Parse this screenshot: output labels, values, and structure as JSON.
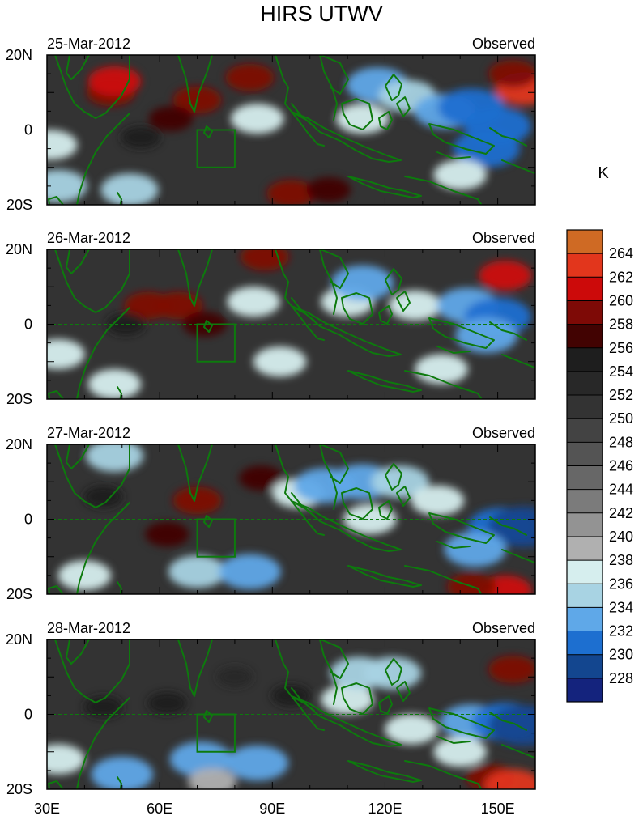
{
  "title": "HIRS UTWV",
  "chart_data": {
    "type": "heatmap",
    "title": "HIRS UTWV",
    "units": "K",
    "xlabel": "",
    "ylabel": "",
    "xlim": [
      30,
      160
    ],
    "ylim": [
      -20,
      20
    ],
    "x_ticks": [
      {
        "value": 30,
        "label": "30E"
      },
      {
        "value": 60,
        "label": "60E"
      },
      {
        "value": 90,
        "label": "90E"
      },
      {
        "value": 120,
        "label": "120E"
      },
      {
        "value": 150,
        "label": "150E"
      }
    ],
    "y_ticks": [
      {
        "value": 20,
        "label": "20N"
      },
      {
        "value": 0,
        "label": "0"
      },
      {
        "value": -20,
        "label": "20S"
      }
    ],
    "colorbar": {
      "levels": [
        264,
        262,
        260,
        258,
        256,
        254,
        252,
        250,
        248,
        246,
        244,
        242,
        240,
        238,
        236,
        234,
        232,
        230,
        228
      ],
      "colors": [
        "#cf6a24",
        "#e2361c",
        "#cc0a0a",
        "#7e0a06",
        "#420302",
        "#1e1e1e",
        "#282828",
        "#333333",
        "#434343",
        "#545454",
        "#676767",
        "#7b7b7b",
        "#939393",
        "#b0b0b0",
        "#d6eeee",
        "#a8d3e3",
        "#5fa8e8",
        "#1d6fd0",
        "#13468f",
        "#14237d"
      ]
    },
    "panels": [
      {
        "date": "25-Mar-2012",
        "tag": "Observed",
        "features": [
          {
            "lon": 47,
            "lat": 10,
            "value": 258
          },
          {
            "lon": 48,
            "lat": 13,
            "value": 260
          },
          {
            "lon": 70,
            "lat": 8,
            "value": 258
          },
          {
            "lon": 63,
            "lat": 3,
            "value": 256
          },
          {
            "lon": 84,
            "lat": 14,
            "value": 258
          },
          {
            "lon": 55,
            "lat": -2,
            "value": 254
          },
          {
            "lon": 95,
            "lat": -17,
            "value": 258
          },
          {
            "lon": 105,
            "lat": -16,
            "value": 256
          },
          {
            "lon": 157,
            "lat": 11,
            "value": 262
          },
          {
            "lon": 154,
            "lat": 15,
            "value": 258
          },
          {
            "lon": 31,
            "lat": -4,
            "value": 236
          },
          {
            "lon": 33,
            "lat": -15,
            "value": 234
          },
          {
            "lon": 52,
            "lat": -16,
            "value": 234
          },
          {
            "lon": 86,
            "lat": 3,
            "value": 236
          },
          {
            "lon": 114,
            "lat": 3,
            "value": 236
          },
          {
            "lon": 118,
            "lat": 12,
            "value": 232
          },
          {
            "lon": 126,
            "lat": 9,
            "value": 234
          },
          {
            "lon": 136,
            "lat": 5,
            "value": 232
          },
          {
            "lon": 143,
            "lat": 6,
            "value": 230
          },
          {
            "lon": 150,
            "lat": 1,
            "value": 230
          },
          {
            "lon": 147,
            "lat": -5,
            "value": 230
          },
          {
            "lon": 140,
            "lat": -12,
            "value": 236
          }
        ]
      },
      {
        "date": "26-Mar-2012",
        "tag": "Observed",
        "features": [
          {
            "lon": 57,
            "lat": 5,
            "value": 258
          },
          {
            "lon": 65,
            "lat": 5,
            "value": 258
          },
          {
            "lon": 72,
            "lat": 0,
            "value": 256
          },
          {
            "lon": 51,
            "lat": 0,
            "value": 254
          },
          {
            "lon": 88,
            "lat": 18,
            "value": 258
          },
          {
            "lon": 152,
            "lat": 13,
            "value": 260
          },
          {
            "lon": 33,
            "lat": -8,
            "value": 236
          },
          {
            "lon": 48,
            "lat": -16,
            "value": 236
          },
          {
            "lon": 92,
            "lat": -10,
            "value": 236
          },
          {
            "lon": 85,
            "lat": 6,
            "value": 236
          },
          {
            "lon": 110,
            "lat": 6,
            "value": 236
          },
          {
            "lon": 114,
            "lat": 11,
            "value": 232
          },
          {
            "lon": 128,
            "lat": 5,
            "value": 236
          },
          {
            "lon": 142,
            "lat": 5,
            "value": 232
          },
          {
            "lon": 150,
            "lat": 2,
            "value": 230
          },
          {
            "lon": 147,
            "lat": -3,
            "value": 232
          },
          {
            "lon": 135,
            "lat": -12,
            "value": 236
          }
        ]
      },
      {
        "date": "27-Mar-2012",
        "tag": "Observed",
        "features": [
          {
            "lon": 62,
            "lat": -4,
            "value": 256
          },
          {
            "lon": 70,
            "lat": 5,
            "value": 258
          },
          {
            "lon": 87,
            "lat": 11,
            "value": 256
          },
          {
            "lon": 45,
            "lat": 6,
            "value": 254
          },
          {
            "lon": 152,
            "lat": -19,
            "value": 260
          },
          {
            "lon": 143,
            "lat": -18,
            "value": 258
          },
          {
            "lon": 48,
            "lat": 17,
            "value": 234
          },
          {
            "lon": 40,
            "lat": -15,
            "value": 236
          },
          {
            "lon": 70,
            "lat": -14,
            "value": 234
          },
          {
            "lon": 84,
            "lat": -14,
            "value": 232
          },
          {
            "lon": 97,
            "lat": 7,
            "value": 236
          },
          {
            "lon": 104,
            "lat": 9,
            "value": 232
          },
          {
            "lon": 114,
            "lat": 10,
            "value": 232
          },
          {
            "lon": 124,
            "lat": 10,
            "value": 234
          },
          {
            "lon": 116,
            "lat": 0,
            "value": 236
          },
          {
            "lon": 134,
            "lat": 5,
            "value": 236
          },
          {
            "lon": 151,
            "lat": -2,
            "value": 230
          },
          {
            "lon": 157,
            "lat": -2,
            "value": 228
          },
          {
            "lon": 144,
            "lat": -8,
            "value": 232
          }
        ]
      },
      {
        "date": "28-Mar-2012",
        "tag": "Observed",
        "features": [
          {
            "lon": 45,
            "lat": 2,
            "value": 254
          },
          {
            "lon": 62,
            "lat": 3,
            "value": 254
          },
          {
            "lon": 80,
            "lat": 10,
            "value": 252
          },
          {
            "lon": 95,
            "lat": 5,
            "value": 254
          },
          {
            "lon": 154,
            "lat": 12,
            "value": 258
          },
          {
            "lon": 148,
            "lat": -17,
            "value": 258
          },
          {
            "lon": 154,
            "lat": -19,
            "value": 262
          },
          {
            "lon": 33,
            "lat": -12,
            "value": 236
          },
          {
            "lon": 50,
            "lat": -16,
            "value": 232
          },
          {
            "lon": 71,
            "lat": -12,
            "value": 232
          },
          {
            "lon": 86,
            "lat": -13,
            "value": 232
          },
          {
            "lon": 74,
            "lat": -18,
            "value": 238
          },
          {
            "lon": 110,
            "lat": 4,
            "value": 236
          },
          {
            "lon": 113,
            "lat": 11,
            "value": 234
          },
          {
            "lon": 122,
            "lat": 11,
            "value": 234
          },
          {
            "lon": 127,
            "lat": -4,
            "value": 236
          },
          {
            "lon": 143,
            "lat": -2,
            "value": 232
          },
          {
            "lon": 152,
            "lat": -2,
            "value": 230
          },
          {
            "lon": 157,
            "lat": -3,
            "value": 228
          },
          {
            "lon": 140,
            "lat": -10,
            "value": 236
          }
        ]
      }
    ]
  }
}
